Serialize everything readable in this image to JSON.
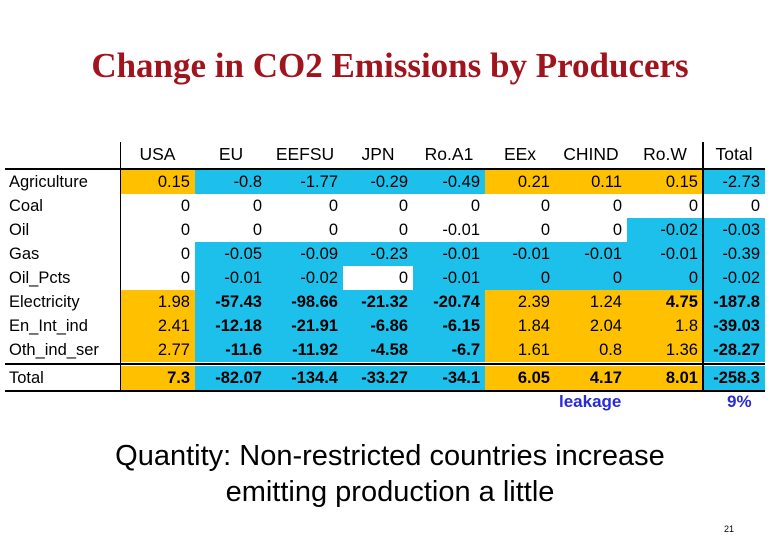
{
  "slide": {
    "title": "Change in CO2 Emissions by Producers",
    "caption_line1": "Quantity: Non-restricted countries increase",
    "caption_line2": "emitting production a little",
    "page_number": "21"
  },
  "table": {
    "headers": [
      "USA",
      "EU",
      "EEFSU",
      "JPN",
      "Ro.A1",
      "EEx",
      "CHIND",
      "Ro.W",
      "Total"
    ],
    "rows": [
      {
        "label": "Agriculture",
        "values": [
          "0.15",
          "-0.8",
          "-1.77",
          "-0.29",
          "-0.49",
          "0.21",
          "0.11",
          "0.15",
          "-2.73"
        ],
        "fills": [
          "y",
          "c",
          "c",
          "c",
          "c",
          "y",
          "y",
          "y",
          "c"
        ],
        "bold": [
          false,
          false,
          false,
          false,
          false,
          false,
          false,
          false,
          false
        ]
      },
      {
        "label": "Coal",
        "values": [
          "0",
          "0",
          "0",
          "0",
          "0",
          "0",
          "0",
          "0",
          "0"
        ],
        "fills": [
          "w",
          "w",
          "w",
          "w",
          "w",
          "w",
          "w",
          "w",
          "w"
        ],
        "bold": [
          false,
          false,
          false,
          false,
          false,
          false,
          false,
          false,
          false
        ]
      },
      {
        "label": "Oil",
        "values": [
          "0",
          "0",
          "0",
          "0",
          "-0.01",
          "0",
          "0",
          "-0.02",
          "-0.03"
        ],
        "fills": [
          "w",
          "w",
          "w",
          "w",
          "w",
          "w",
          "w",
          "c",
          "c"
        ],
        "bold": [
          false,
          false,
          false,
          false,
          false,
          false,
          false,
          false,
          false
        ]
      },
      {
        "label": "Gas",
        "values": [
          "0",
          "-0.05",
          "-0.09",
          "-0.23",
          "-0.01",
          "-0.01",
          "-0.01",
          "-0.01",
          "-0.39"
        ],
        "fills": [
          "w",
          "c",
          "c",
          "c",
          "c",
          "c",
          "c",
          "c",
          "c"
        ],
        "bold": [
          false,
          false,
          false,
          false,
          false,
          false,
          false,
          false,
          false
        ]
      },
      {
        "label": "Oil_Pcts",
        "values": [
          "0",
          "-0.01",
          "-0.02",
          "0",
          "-0.01",
          "0",
          "0",
          "0",
          "-0.02"
        ],
        "fills": [
          "w",
          "c",
          "c",
          "w",
          "c",
          "c",
          "c",
          "c",
          "c"
        ],
        "bold": [
          false,
          false,
          false,
          false,
          false,
          false,
          false,
          false,
          false
        ]
      },
      {
        "label": "Electricity",
        "values": [
          "1.98",
          "-57.43",
          "-98.66",
          "-21.32",
          "-20.74",
          "2.39",
          "1.24",
          "4.75",
          "-187.8"
        ],
        "fills": [
          "y",
          "c",
          "c",
          "c",
          "c",
          "y",
          "y",
          "y",
          "c"
        ],
        "bold": [
          false,
          true,
          true,
          true,
          true,
          false,
          false,
          true,
          true
        ]
      },
      {
        "label": "En_Int_ind",
        "values": [
          "2.41",
          "-12.18",
          "-21.91",
          "-6.86",
          "-6.15",
          "1.84",
          "2.04",
          "1.8",
          "-39.03"
        ],
        "fills": [
          "y",
          "c",
          "c",
          "c",
          "c",
          "y",
          "y",
          "y",
          "c"
        ],
        "bold": [
          false,
          true,
          true,
          true,
          true,
          false,
          false,
          false,
          true
        ]
      },
      {
        "label": "Oth_ind_ser",
        "values": [
          "2.77",
          "-11.6",
          "-11.92",
          "-4.58",
          "-6.7",
          "1.61",
          "0.8",
          "1.36",
          "-28.27"
        ],
        "fills": [
          "y",
          "c",
          "c",
          "c",
          "c",
          "y",
          "y",
          "y",
          "c"
        ],
        "bold": [
          false,
          true,
          true,
          true,
          true,
          false,
          false,
          false,
          true
        ]
      }
    ],
    "total_row": {
      "label": "Total",
      "values": [
        "7.3",
        "-82.07",
        "-134.4",
        "-33.27",
        "-34.1",
        "6.05",
        "4.17",
        "8.01",
        "-258.3"
      ],
      "fills": [
        "y",
        "c",
        "c",
        "c",
        "c",
        "y",
        "y",
        "y",
        "c"
      ]
    },
    "leakage_label": "leakage",
    "leakage_value": "9%",
    "colors": {
      "increase": "#ffc000",
      "decrease": "#1cc0ea",
      "leakage_text": "#2a2ad8",
      "title": "#a0141e"
    }
  }
}
